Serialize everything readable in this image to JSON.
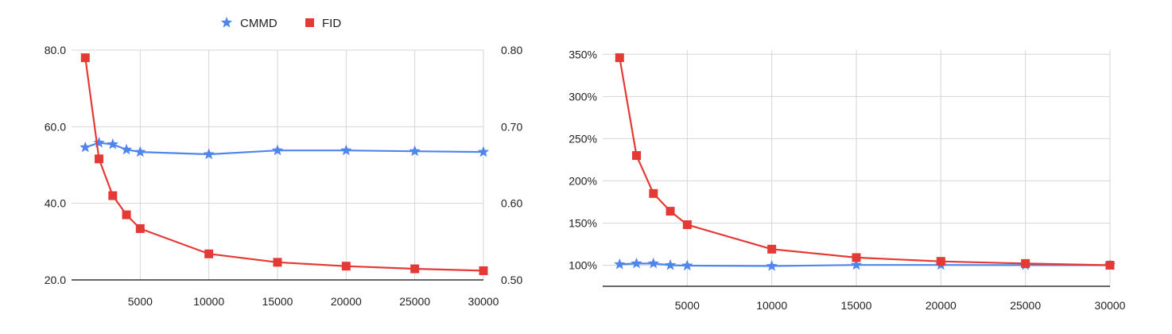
{
  "legend": {
    "items": [
      {
        "label": "CMMD",
        "color": "#4f86ec",
        "marker": "star"
      },
      {
        "label": "FID",
        "color": "#e53935",
        "marker": "square"
      }
    ]
  },
  "chart_data": [
    {
      "type": "line",
      "title": "",
      "xlabel": "",
      "ylabel": "",
      "x_ticks": [
        "5000",
        "10000",
        "15000",
        "20000",
        "25000",
        "30000"
      ],
      "xlim": [
        0,
        30000
      ],
      "y_left_ticks": [
        "20.0",
        "40.0",
        "60.0",
        "80.0"
      ],
      "ylim_left": [
        20,
        80
      ],
      "y_right_ticks": [
        "0.50",
        "0.60",
        "0.70",
        "0.80"
      ],
      "ylim_right": [
        0.5,
        0.8
      ],
      "grid": true,
      "legend_position": "top",
      "series": [
        {
          "name": "CMMD",
          "axis": "right",
          "color": "#4f86ec",
          "marker": "star",
          "x": [
            1000,
            2000,
            3000,
            4000,
            5000,
            10000,
            15000,
            20000,
            25000,
            30000
          ],
          "y": [
            0.673,
            0.679,
            0.677,
            0.67,
            0.667,
            0.664,
            0.669,
            0.669,
            0.668,
            0.667
          ]
        },
        {
          "name": "FID",
          "axis": "left",
          "color": "#e53935",
          "marker": "square",
          "x": [
            1000,
            2000,
            3000,
            4000,
            5000,
            10000,
            15000,
            20000,
            25000,
            30000
          ],
          "y": [
            78.0,
            51.6,
            42.0,
            37.0,
            33.4,
            26.8,
            24.6,
            23.6,
            22.9,
            22.4
          ]
        }
      ]
    },
    {
      "type": "line",
      "title": "",
      "xlabel": "",
      "ylabel": "",
      "x_ticks": [
        "5000",
        "10000",
        "15000",
        "20000",
        "25000",
        "30000"
      ],
      "xlim": [
        0,
        30000
      ],
      "y_ticks": [
        "100%",
        "150%",
        "200%",
        "250%",
        "300%",
        "350%"
      ],
      "ylim": [
        75,
        355
      ],
      "grid": true,
      "series": [
        {
          "name": "CMMD",
          "color": "#4f86ec",
          "marker": "star",
          "x": [
            1000,
            2000,
            3000,
            4000,
            5000,
            10000,
            15000,
            20000,
            25000,
            30000
          ],
          "y": [
            101,
            102,
            102,
            100,
            99.5,
            99,
            100.3,
            100.3,
            100.1,
            100
          ]
        },
        {
          "name": "FID",
          "color": "#e53935",
          "marker": "square",
          "x": [
            1000,
            2000,
            3000,
            4000,
            5000,
            10000,
            15000,
            20000,
            25000,
            30000
          ],
          "y": [
            346,
            230,
            185,
            164,
            148,
            119,
            109,
            104.5,
            102,
            100
          ]
        }
      ]
    }
  ]
}
